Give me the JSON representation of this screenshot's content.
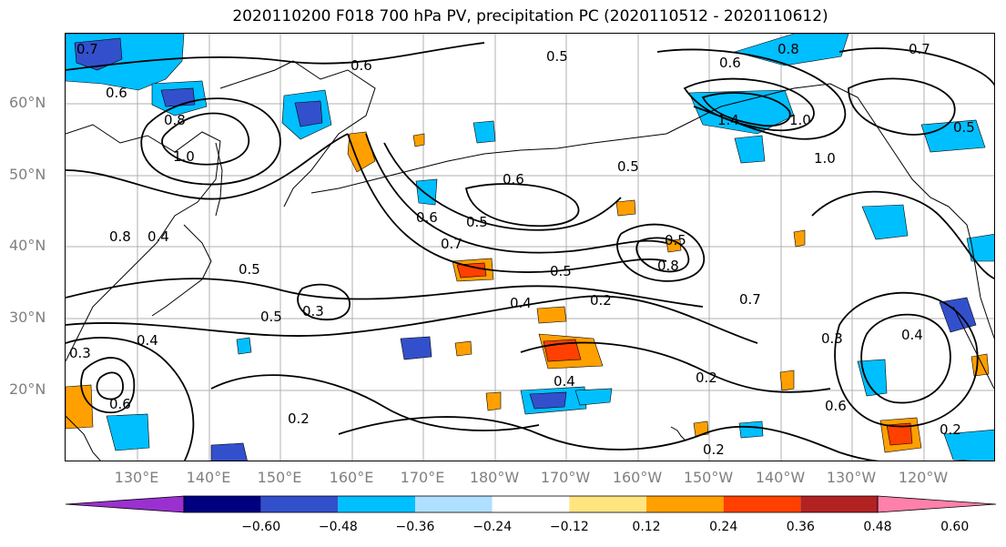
{
  "title": "2020110200 F018 700 hPa PV, precipitation PC (2020110512 - 2020110612)",
  "lat_labels": [
    "60°N",
    "50°N",
    "40°N",
    "30°N",
    "20°N"
  ],
  "lon_labels": [
    "130°E",
    "140°E",
    "150°E",
    "160°E",
    "170°E",
    "180°W",
    "170°W",
    "160°W",
    "150°W",
    "140°W",
    "130°W",
    "120°W"
  ],
  "contour_labels": [
    "0.7",
    "0.6",
    "0.8",
    "0.6",
    "1.0",
    "0.5",
    "0.6",
    "0.5",
    "0.6",
    "0.5",
    "0.7",
    "0.8",
    "0.4",
    "0.5",
    "0.3",
    "0.4",
    "0.2",
    "0.5",
    "0.4",
    "0.2",
    "0.7",
    "0.2",
    "0.6",
    "0.5",
    "0.3",
    "0.4",
    "0.3",
    "0.4",
    "0.2",
    "0.6",
    "0.6",
    "1.4",
    "1.0",
    "0.8",
    "0.7",
    "0.5",
    "0.8",
    "0.5",
    "0.2",
    "1.0"
  ],
  "colorbar": {
    "ticks": [
      "−0.60",
      "−0.48",
      "−0.36",
      "−0.24",
      "−0.12",
      "0.12",
      "0.24",
      "0.36",
      "0.48",
      "0.60"
    ],
    "colors": [
      "#9b30d0",
      "#000080",
      "#3350cc",
      "#00bfff",
      "#b0e0ff",
      "#ffffff",
      "#ffe57f",
      "#ffa000",
      "#ff4000",
      "#b22222",
      "#ff80aa"
    ]
  },
  "colors": {
    "contour": "#000000",
    "coast": "#000000",
    "grid": "#b0b0b0",
    "axis_label": "#7f7f7f"
  }
}
